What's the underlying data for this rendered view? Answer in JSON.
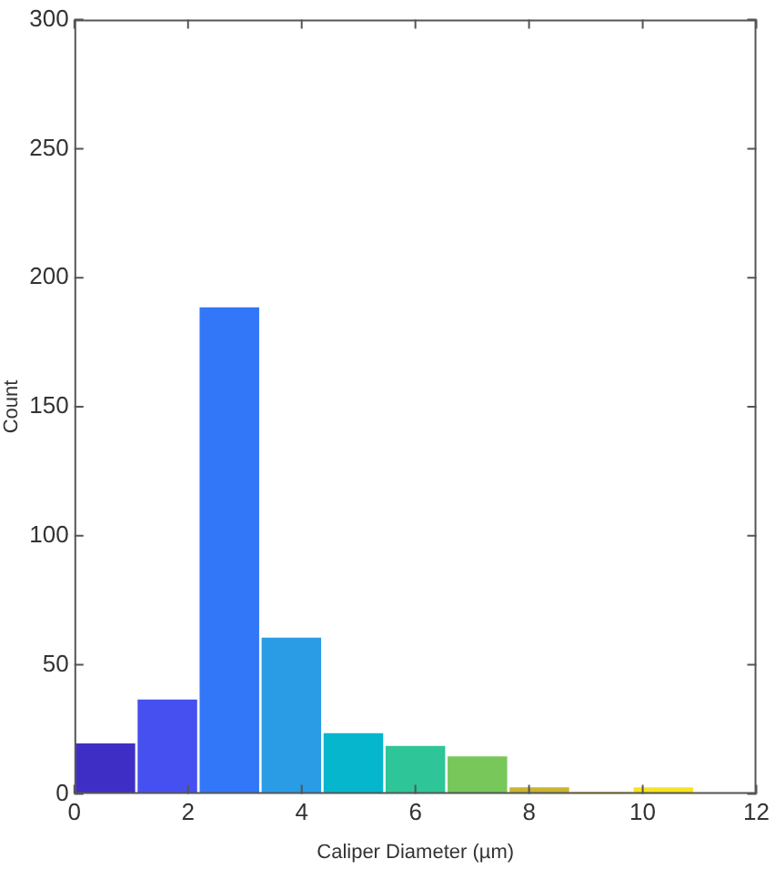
{
  "chart_data": {
    "type": "histogram",
    "xlabel": "Caliper Diameter (µm)",
    "ylabel": "Count",
    "bins": [
      0,
      1.0909,
      2.1818,
      3.2727,
      4.3636,
      5.4545,
      6.5455,
      7.6364,
      8.7273,
      9.8182,
      10.9091,
      12
    ],
    "values": [
      20,
      37,
      189,
      61,
      24,
      19,
      15,
      3,
      1,
      3,
      0
    ],
    "colors": [
      "#3f2ec6",
      "#4650f0",
      "#3277f7",
      "#2a9ce6",
      "#06b6cc",
      "#2ec598",
      "#77c75a",
      "#c9b431",
      "#f3d930",
      "#f6e424",
      "#f9f316"
    ],
    "xlim": [
      0,
      12
    ],
    "xticks": [
      0,
      2,
      4,
      6,
      8,
      10,
      12
    ],
    "ylim": [
      0,
      300
    ],
    "yticks": [
      0,
      50,
      100,
      150,
      200,
      250,
      300
    ],
    "grid": false
  }
}
